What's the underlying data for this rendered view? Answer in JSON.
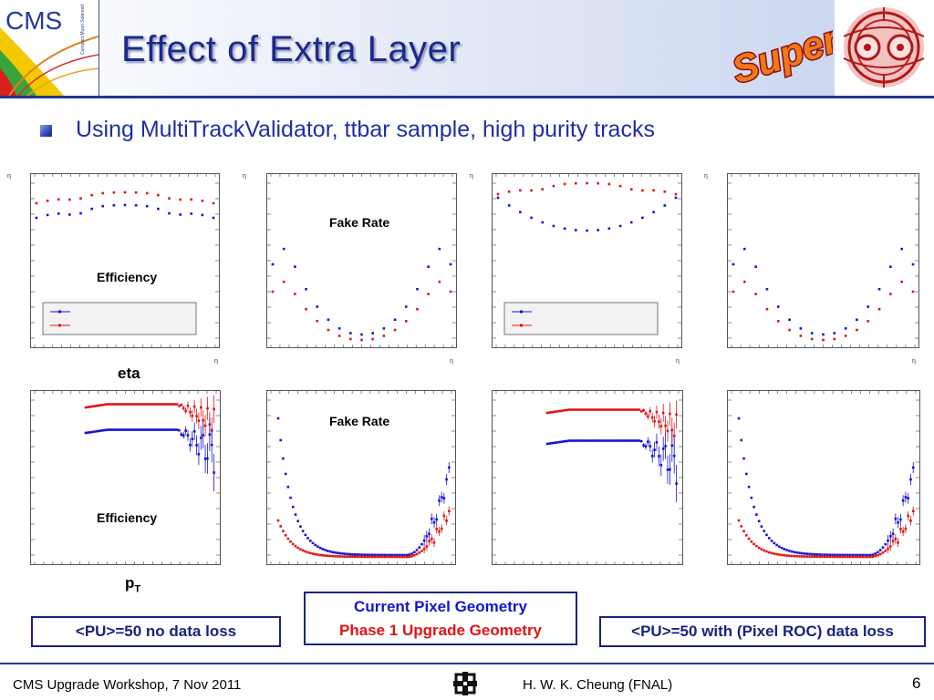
{
  "header": {
    "title": "Effect of Extra Layer",
    "cms_logo_text": "CMS",
    "cms_logo_subtext": "Compact Muon Solenoid",
    "super_logo_text": "Super"
  },
  "subtitle": "Using MultiTrackValidator, ttbar sample, high purity tracks",
  "labels": {
    "eta": "eta",
    "pt_main": "p",
    "pt_sub": "T",
    "efficiency": "Efficiency",
    "fake_rate": "Fake Rate",
    "eta_axis_symbol": "η"
  },
  "boxes": {
    "left": "<PU>=50 no data loss",
    "center_line1": "Current Pixel Geometry",
    "center_line2": "Phase 1 Upgrade Geometry",
    "right": "<PU>=50 with (Pixel ROC) data loss"
  },
  "colors": {
    "current_geometry": "#1414d4",
    "phase1_geometry": "#e01414",
    "title": "#1b2a8c",
    "subtitle": "#1f2fa5"
  },
  "footer": {
    "left": "CMS Upgrade Workshop, 7 Nov 2011",
    "right": "H. W. K. Cheung (FNAL)",
    "page": "6"
  }
}
